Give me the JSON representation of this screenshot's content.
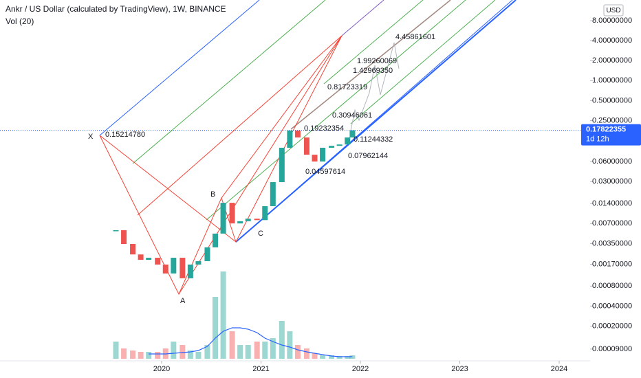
{
  "header": {
    "title": "Ankr / US Dollar (calculated by TradingView), 1W, BINANCE",
    "indicator": "Vol (20)",
    "currency": "USD"
  },
  "chart_data": {
    "type": "candlestick",
    "log_scale": true,
    "grid": false,
    "x": [
      2019.54,
      2019.62,
      2019.71,
      2019.79,
      2019.87,
      2019.96,
      2020.04,
      2020.12,
      2020.21,
      2020.29,
      2020.37,
      2020.46,
      2020.54,
      2020.62,
      2020.71,
      2020.79,
      2020.87,
      2020.96,
      2021.04,
      2021.12,
      2021.21,
      2021.29,
      2021.37,
      2021.46,
      2021.54,
      2021.62,
      2021.71,
      2021.79,
      2021.87,
      2021.92
    ],
    "close": [
      0.00556,
      0.00345,
      0.0024,
      0.00199,
      0.00214,
      0.00169,
      0.00124,
      0.00214,
      0.00105,
      0.00169,
      0.0019,
      0.00307,
      0.00495,
      0.0144,
      0.00704,
      0.0076,
      0.0083,
      0.0079,
      0.0128,
      0.0295,
      0.0973,
      0.177,
      0.139,
      0.0764,
      0.0604,
      0.0973,
      0.104,
      0.109,
      0.139,
      0.17822355
    ],
    "volume": [
      25,
      15,
      12,
      10,
      10,
      10,
      15,
      25,
      20,
      12,
      10,
      20,
      90,
      127,
      40,
      20,
      20,
      25,
      25,
      30,
      55,
      40,
      20,
      15,
      8,
      5,
      5,
      4,
      4,
      5
    ],
    "volume_ma": [
      null,
      null,
      null,
      null,
      7,
      7,
      7,
      8,
      9,
      10,
      12,
      18,
      30,
      40,
      45,
      45,
      43,
      38,
      30,
      25,
      20,
      17,
      13,
      10,
      8,
      6,
      4,
      3,
      3,
      3
    ],
    "up_color": "#26a69a",
    "down_color": "#ef5350",
    "volume_ma_color": "#2962ff",
    "xlim": [
      2018.374,
      2024.256
    ],
    "xticks": [
      2020,
      2021,
      2022,
      2023,
      2024
    ],
    "ylim": [
      6.43e-05,
      16.4
    ],
    "yticks": [
      {
        "value": 8,
        "label": "8.00000000"
      },
      {
        "value": 4,
        "label": "4.00000000"
      },
      {
        "value": 2,
        "label": "2.00000000"
      },
      {
        "value": 1,
        "label": "1.00000000"
      },
      {
        "value": 0.5,
        "label": "0.50000000"
      },
      {
        "value": 0.25,
        "label": "0.25000000"
      },
      {
        "value": 0.06,
        "label": "0.06000000"
      },
      {
        "value": 0.03,
        "label": "0.03000000"
      },
      {
        "value": 0.014,
        "label": "0.01400000"
      },
      {
        "value": 0.007,
        "label": "0.00700000"
      },
      {
        "value": 0.0035,
        "label": "0.00350000"
      },
      {
        "value": 0.0017,
        "label": "0.00170000"
      },
      {
        "value": 0.0008,
        "label": "0.00080000"
      },
      {
        "value": 0.0004,
        "label": "0.00040000"
      },
      {
        "value": 0.0002,
        "label": "0.00020000"
      },
      {
        "value": 9e-05,
        "label": "0.00009000"
      }
    ],
    "y2lim": [
      0,
      522
    ],
    "last_price": 0.17822355,
    "countdown": "1d 12h",
    "annotations": [
      "X",
      "0.15214780",
      "A",
      "B",
      "C",
      "0.19232354",
      "0.11244332",
      "0.07962144",
      "0.04597614",
      "0.30946061",
      "0.81723319",
      "1.42969350",
      "1.99260069",
      "4.45861601"
    ]
  }
}
